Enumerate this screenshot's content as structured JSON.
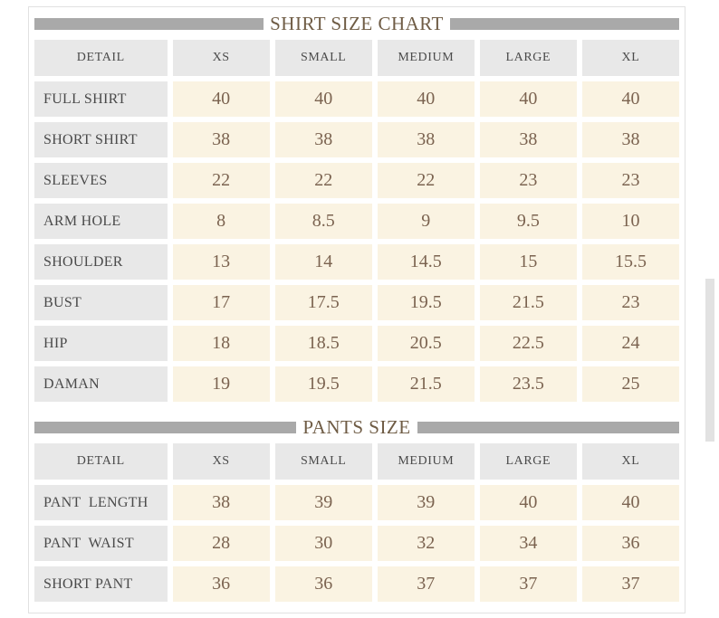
{
  "colors": {
    "title_bar": "#a9a9a9",
    "title_text": "#6f5c45",
    "header_cell_bg": "#e8e8e8",
    "header_cell_text": "#4a4a4a",
    "value_cell_bg": "#faf3e2",
    "value_cell_text": "#7b6350",
    "panel_border": "#e1e1e1"
  },
  "shirt_chart": {
    "title": "SHIRT SIZE CHART",
    "columns": [
      "DETAIL",
      "XS",
      "SMALL",
      "MEDIUM",
      "LARGE",
      "XL"
    ],
    "rows": [
      {
        "label": "FULL SHIRT",
        "values": [
          "40",
          "40",
          "40",
          "40",
          "40"
        ]
      },
      {
        "label": "SHORT SHIRT",
        "values": [
          "38",
          "38",
          "38",
          "38",
          "38"
        ]
      },
      {
        "label": "SLEEVES",
        "values": [
          "22",
          "22",
          "22",
          "23",
          "23"
        ]
      },
      {
        "label": "ARM HOLE",
        "values": [
          "8",
          "8.5",
          "9",
          "9.5",
          "10"
        ]
      },
      {
        "label": "SHOULDER",
        "values": [
          "13",
          "14",
          "14.5",
          "15",
          "15.5"
        ]
      },
      {
        "label": "BUST",
        "values": [
          "17",
          "17.5",
          "19.5",
          "21.5",
          "23"
        ]
      },
      {
        "label": "HIP",
        "values": [
          "18",
          "18.5",
          "20.5",
          "22.5",
          "24"
        ]
      },
      {
        "label": "DAMAN",
        "values": [
          "19",
          "19.5",
          "21.5",
          "23.5",
          "25"
        ]
      }
    ]
  },
  "pants_chart": {
    "title": "PANTS SIZE",
    "columns": [
      "DETAIL",
      "XS",
      "SMALL",
      "MEDIUM",
      "LARGE",
      "XL"
    ],
    "rows": [
      {
        "label": "PANT  LENGTH",
        "values": [
          "38",
          "39",
          "39",
          "40",
          "40"
        ]
      },
      {
        "label": "PANT  WAIST",
        "values": [
          "28",
          "30",
          "32",
          "34",
          "36"
        ]
      },
      {
        "label": "SHORT PANT",
        "values": [
          "36",
          "36",
          "37",
          "37",
          "37"
        ]
      }
    ]
  },
  "chart_data": [
    {
      "type": "table",
      "title": "SHIRT SIZE CHART",
      "columns": [
        "DETAIL",
        "XS",
        "SMALL",
        "MEDIUM",
        "LARGE",
        "XL"
      ],
      "rows": [
        [
          "FULL SHIRT",
          40,
          40,
          40,
          40,
          40
        ],
        [
          "SHORT SHIRT",
          38,
          38,
          38,
          38,
          38
        ],
        [
          "SLEEVES",
          22,
          22,
          22,
          23,
          23
        ],
        [
          "ARM HOLE",
          8,
          8.5,
          9,
          9.5,
          10
        ],
        [
          "SHOULDER",
          13,
          14,
          14.5,
          15,
          15.5
        ],
        [
          "BUST",
          17,
          17.5,
          19.5,
          21.5,
          23
        ],
        [
          "HIP",
          18,
          18.5,
          20.5,
          22.5,
          24
        ],
        [
          "DAMAN",
          19,
          19.5,
          21.5,
          23.5,
          25
        ]
      ]
    },
    {
      "type": "table",
      "title": "PANTS SIZE",
      "columns": [
        "DETAIL",
        "XS",
        "SMALL",
        "MEDIUM",
        "LARGE",
        "XL"
      ],
      "rows": [
        [
          "PANT LENGTH",
          38,
          39,
          39,
          40,
          40
        ],
        [
          "PANT WAIST",
          28,
          30,
          32,
          34,
          36
        ],
        [
          "SHORT PANT",
          36,
          36,
          37,
          37,
          37
        ]
      ]
    }
  ]
}
